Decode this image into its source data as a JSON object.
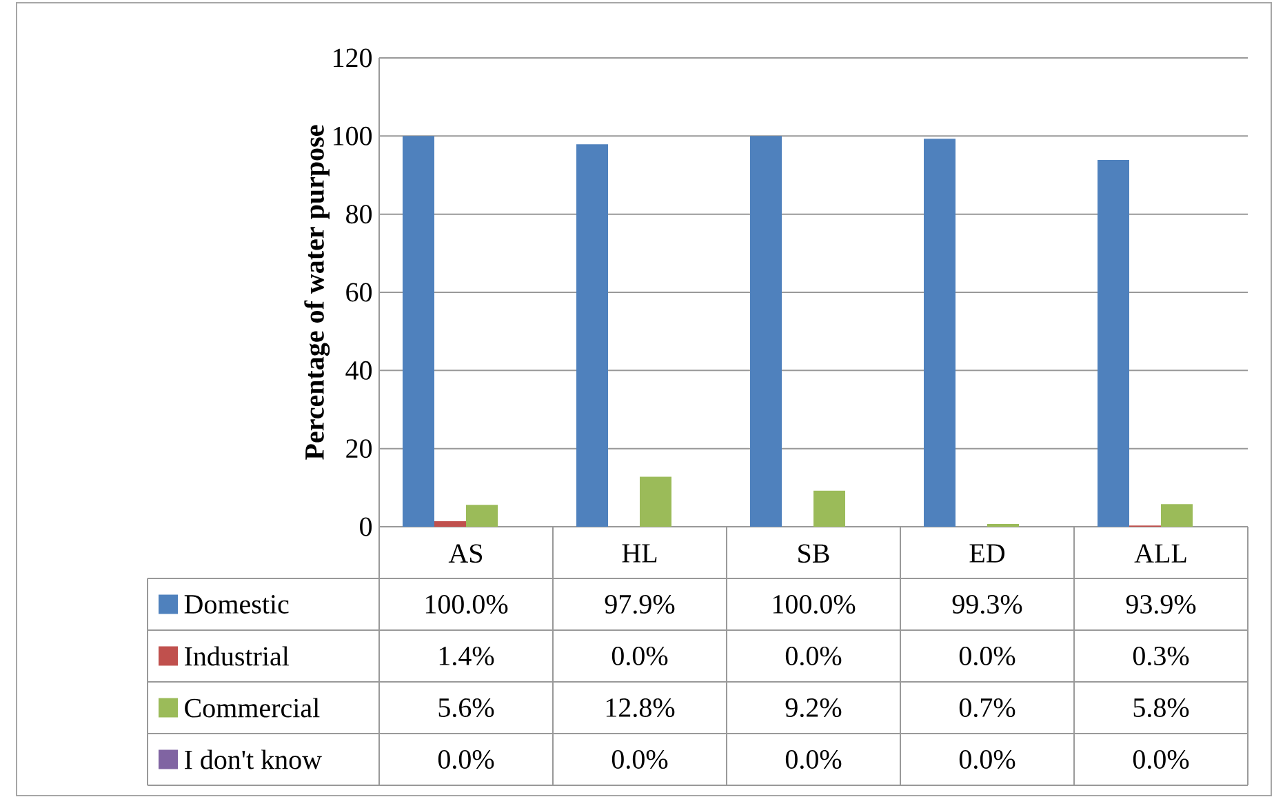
{
  "chart_data": {
    "type": "bar",
    "ylabel": "Percentage of water purpose",
    "categories": [
      "AS",
      "HL",
      "SB",
      "ED",
      "ALL"
    ],
    "series": [
      {
        "name": "Domestic",
        "color": "#4f81bd",
        "values": [
          100.0,
          97.9,
          100.0,
          99.3,
          93.9
        ],
        "value_labels": [
          "100.0%",
          "97.9%",
          "100.0%",
          "99.3%",
          "93.9%"
        ]
      },
      {
        "name": "Industrial",
        "color": "#c0504d",
        "values": [
          1.4,
          0.0,
          0.0,
          0.0,
          0.3
        ],
        "value_labels": [
          "1.4%",
          "0.0%",
          "0.0%",
          "0.0%",
          "0.3%"
        ]
      },
      {
        "name": "Commercial",
        "color": "#9bbb59",
        "values": [
          5.6,
          12.8,
          9.2,
          0.7,
          5.8
        ],
        "value_labels": [
          "5.6%",
          "12.8%",
          "9.2%",
          "0.7%",
          "5.8%"
        ]
      },
      {
        "name": "I don't know",
        "color": "#8064a2",
        "values": [
          0.0,
          0.0,
          0.0,
          0.0,
          0.0
        ],
        "value_labels": [
          "0.0%",
          "0.0%",
          "0.0%",
          "0.0%",
          "0.0%"
        ]
      }
    ],
    "ylim": [
      0,
      120
    ],
    "yticks": [
      0,
      20,
      40,
      60,
      80,
      100,
      120
    ],
    "grid": "y",
    "legend": "bottom"
  }
}
